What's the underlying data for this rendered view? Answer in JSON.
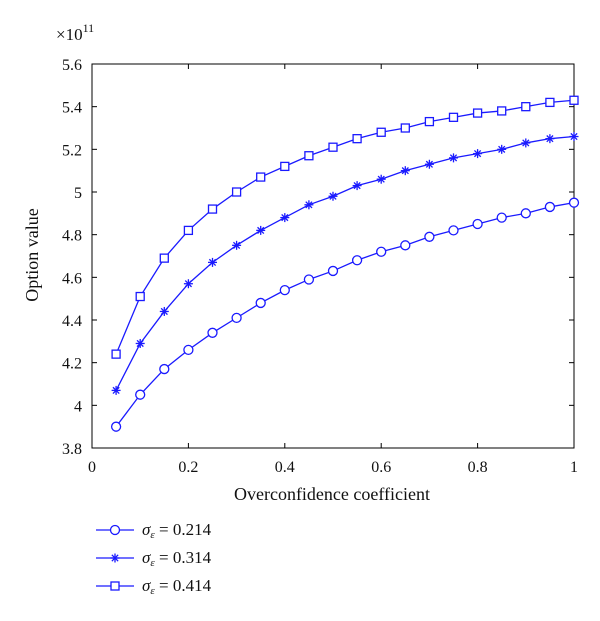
{
  "chart_data": {
    "type": "line",
    "xlabel": "Overconfidence coefficient",
    "ylabel": "Option value",
    "y_multiplier_label": "×10",
    "y_multiplier_exponent": "11",
    "xlim": [
      0,
      1
    ],
    "ylim": [
      3.8,
      5.6
    ],
    "x_ticks": [
      0,
      0.2,
      0.4,
      0.6,
      0.8,
      1
    ],
    "x_tick_labels": [
      "0",
      "0.2",
      "0.4",
      "0.6",
      "0.8",
      "1"
    ],
    "y_ticks": [
      3.8,
      4,
      4.2,
      4.4,
      4.6,
      4.8,
      5,
      5.2,
      5.4,
      5.6
    ],
    "y_tick_labels": [
      "3.8",
      "4",
      "4.2",
      "4.4",
      "4.6",
      "4.8",
      "5",
      "5.2",
      "5.4",
      "5.6"
    ],
    "grid": false,
    "legend_position": "below",
    "line_color": "#1a1aff",
    "x": [
      0.05,
      0.1,
      0.15,
      0.2,
      0.25,
      0.3,
      0.35,
      0.4,
      0.45,
      0.5,
      0.55,
      0.6,
      0.65,
      0.7,
      0.75,
      0.8,
      0.85,
      0.9,
      0.95,
      1.0
    ],
    "series": [
      {
        "name": "σε = 0.214",
        "marker": "circle",
        "values": [
          3.9,
          4.05,
          4.17,
          4.26,
          4.34,
          4.41,
          4.48,
          4.54,
          4.59,
          4.63,
          4.68,
          4.72,
          4.75,
          4.79,
          4.82,
          4.85,
          4.88,
          4.9,
          4.93,
          4.95
        ]
      },
      {
        "name": "σε = 0.314",
        "marker": "star",
        "values": [
          4.07,
          4.29,
          4.44,
          4.57,
          4.67,
          4.75,
          4.82,
          4.88,
          4.94,
          4.98,
          5.03,
          5.06,
          5.1,
          5.13,
          5.16,
          5.18,
          5.2,
          5.23,
          5.25,
          5.26
        ]
      },
      {
        "name": "σε = 0.414",
        "marker": "square",
        "values": [
          4.24,
          4.51,
          4.69,
          4.82,
          4.92,
          5.0,
          5.07,
          5.12,
          5.17,
          5.21,
          5.25,
          5.28,
          5.3,
          5.33,
          5.35,
          5.37,
          5.38,
          5.4,
          5.42,
          5.43
        ]
      }
    ],
    "legend": [
      {
        "sym": "σ",
        "sub": "ε",
        "val": "= 0.214"
      },
      {
        "sym": "σ",
        "sub": "ε",
        "val": "= 0.314"
      },
      {
        "sym": "σ",
        "sub": "ε",
        "val": "= 0.414"
      }
    ]
  }
}
